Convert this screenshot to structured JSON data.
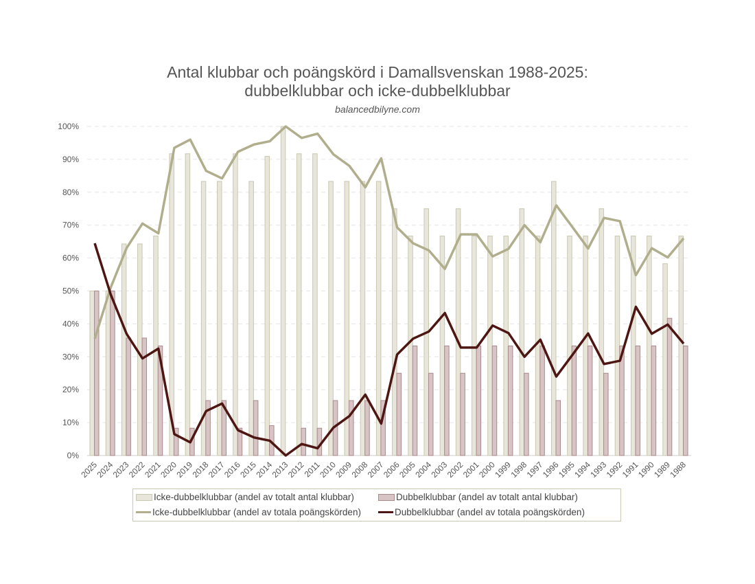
{
  "chart_data": {
    "type": "bar+line",
    "title": "Antal klubbar och poängskörd i Damallsvenskan 1988-2025:",
    "title_line2": "dubbelklubbar och icke-dubbelklubbar",
    "subtitle": "balancedbilyne.com",
    "categories": [
      "2025",
      "2024",
      "2023",
      "2022",
      "2021",
      "2020",
      "2019",
      "2018",
      "2017",
      "2016",
      "2015",
      "2014",
      "2013",
      "2012",
      "2011",
      "2010",
      "2009",
      "2008",
      "2007",
      "2006",
      "2005",
      "2004",
      "2003",
      "2002",
      "2001",
      "2000",
      "1999",
      "1998",
      "1997",
      "1996",
      "1995",
      "1994",
      "1993",
      "1992",
      "1991",
      "1990",
      "1989",
      "1988"
    ],
    "ylim": [
      0,
      100
    ],
    "yticks": [
      "0%",
      "10%",
      "20%",
      "30%",
      "40%",
      "50%",
      "60%",
      "70%",
      "80%",
      "90%",
      "100%"
    ],
    "grid": true,
    "legend_position": "bottom",
    "series": [
      {
        "name": "Icke-dubbelklubbar (andel av totalt antal klubbar)",
        "kind": "bar",
        "color": "#e8e6da",
        "stroke": "#c9c8b0",
        "values": [
          50,
          50,
          64.3,
          64.3,
          66.7,
          91.7,
          91.7,
          83.3,
          83.3,
          91.7,
          83.3,
          90.9,
          100,
          91.7,
          91.7,
          83.3,
          83.3,
          83.3,
          83.3,
          75,
          66.7,
          75,
          66.7,
          75,
          66.7,
          66.7,
          66.7,
          75,
          66.7,
          83.3,
          66.7,
          66.7,
          75,
          66.7,
          66.7,
          66.7,
          58.3,
          66.7
        ]
      },
      {
        "name": "Dubbelklubbar (andel av totalt antal klubbar)",
        "kind": "bar",
        "color": "#d8c4c4",
        "stroke": "#a88a8a",
        "values": [
          50,
          50,
          35.7,
          35.7,
          33.3,
          8.3,
          8.3,
          16.7,
          16.7,
          8.3,
          16.7,
          9.1,
          0,
          8.3,
          8.3,
          16.7,
          16.7,
          16.7,
          16.7,
          25,
          33.3,
          25,
          33.3,
          25,
          33.3,
          33.3,
          33.3,
          25,
          33.3,
          16.7,
          33.3,
          33.3,
          25,
          33.3,
          33.3,
          33.3,
          41.7,
          33.3
        ]
      },
      {
        "name": "Icke-dubbelklubbar (andel av totala poängskörden)",
        "kind": "line",
        "color": "#b0ae8c",
        "values": [
          35.5,
          51,
          63,
          70.5,
          67.5,
          93.5,
          96,
          86.5,
          84.2,
          92.3,
          94.5,
          95.5,
          100,
          96.5,
          97.8,
          91.5,
          88,
          81.5,
          90.3,
          69.3,
          64.5,
          62.3,
          56.7,
          67.2,
          67.2,
          60.5,
          62.8,
          70,
          64.8,
          76,
          69.5,
          62.9,
          72.2,
          71.2,
          54.8,
          63,
          60.2,
          66
        ]
      },
      {
        "name": "Dubbelklubbar (andel av totala poängskörden)",
        "kind": "line",
        "color": "#4e1612",
        "values": [
          64.5,
          49,
          37,
          29.5,
          32.5,
          6.5,
          4,
          13.5,
          15.8,
          7.7,
          5.5,
          4.5,
          0,
          3.5,
          2.2,
          8.5,
          12,
          18.5,
          9.7,
          30.7,
          35.5,
          37.7,
          43.3,
          32.8,
          32.8,
          39.5,
          37.2,
          30,
          35.2,
          24,
          30.5,
          37.1,
          27.8,
          28.8,
          45.2,
          37,
          39.8,
          34
        ]
      }
    ]
  }
}
